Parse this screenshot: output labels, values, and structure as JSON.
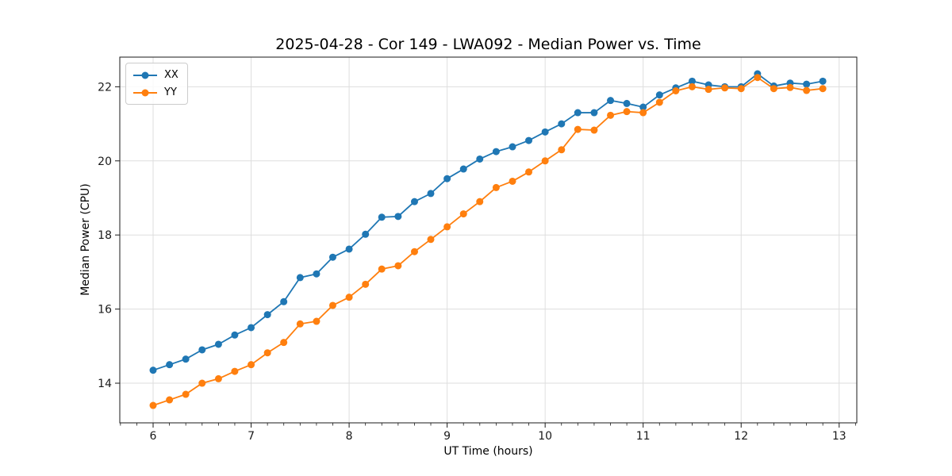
{
  "chart_data": {
    "type": "line",
    "title": "2025-04-28 - Cor 149 - LWA092 - Median Power vs. Time",
    "xlabel": "UT Time (hours)",
    "ylabel": "Median Power (CPU)",
    "xlim": [
      5.66,
      13.18
    ],
    "ylim": [
      12.93,
      22.8
    ],
    "x_major_ticks": [
      6,
      7,
      8,
      9,
      10,
      11,
      12,
      13
    ],
    "y_major_ticks": [
      14,
      16,
      18,
      20,
      22
    ],
    "x_minor_tick_step": 0.1667,
    "grid": true,
    "legend_position": "upper-left",
    "x": [
      6.0,
      6.167,
      6.333,
      6.5,
      6.667,
      6.833,
      7.0,
      7.167,
      7.333,
      7.5,
      7.667,
      7.833,
      8.0,
      8.167,
      8.333,
      8.5,
      8.667,
      8.833,
      9.0,
      9.167,
      9.333,
      9.5,
      9.667,
      9.833,
      10.0,
      10.167,
      10.333,
      10.5,
      10.667,
      10.833,
      11.0,
      11.167,
      11.333,
      11.5,
      11.667,
      11.833,
      12.0,
      12.167,
      12.333,
      12.5,
      12.667,
      12.833
    ],
    "series": [
      {
        "name": "XX",
        "color": "#1f77b4",
        "values": [
          14.35,
          14.5,
          14.65,
          14.9,
          15.05,
          15.3,
          15.5,
          15.85,
          16.2,
          16.85,
          16.95,
          17.4,
          17.62,
          18.02,
          18.48,
          18.5,
          18.9,
          19.12,
          19.52,
          19.78,
          20.05,
          20.25,
          20.38,
          20.55,
          20.78,
          21.0,
          21.3,
          21.3,
          21.63,
          21.55,
          21.45,
          21.78,
          21.97,
          22.15,
          22.05,
          22.0,
          22.0,
          22.35,
          22.02,
          22.1,
          22.07,
          22.15
        ]
      },
      {
        "name": "YY",
        "color": "#ff7f0e",
        "values": [
          13.4,
          13.55,
          13.7,
          14.0,
          14.12,
          14.32,
          14.5,
          14.82,
          15.1,
          15.6,
          15.67,
          16.1,
          16.32,
          16.67,
          17.08,
          17.17,
          17.55,
          17.88,
          18.22,
          18.57,
          18.9,
          19.28,
          19.45,
          19.7,
          20.0,
          20.3,
          20.85,
          20.83,
          21.23,
          21.33,
          21.3,
          21.58,
          21.89,
          22.0,
          21.93,
          21.97,
          21.95,
          22.25,
          21.95,
          21.98,
          21.9,
          21.95
        ]
      }
    ],
    "style": {
      "grid_color": "#dedede",
      "spine_color": "#1a1a1a",
      "tick_label_color": "#1a1a1a"
    }
  }
}
